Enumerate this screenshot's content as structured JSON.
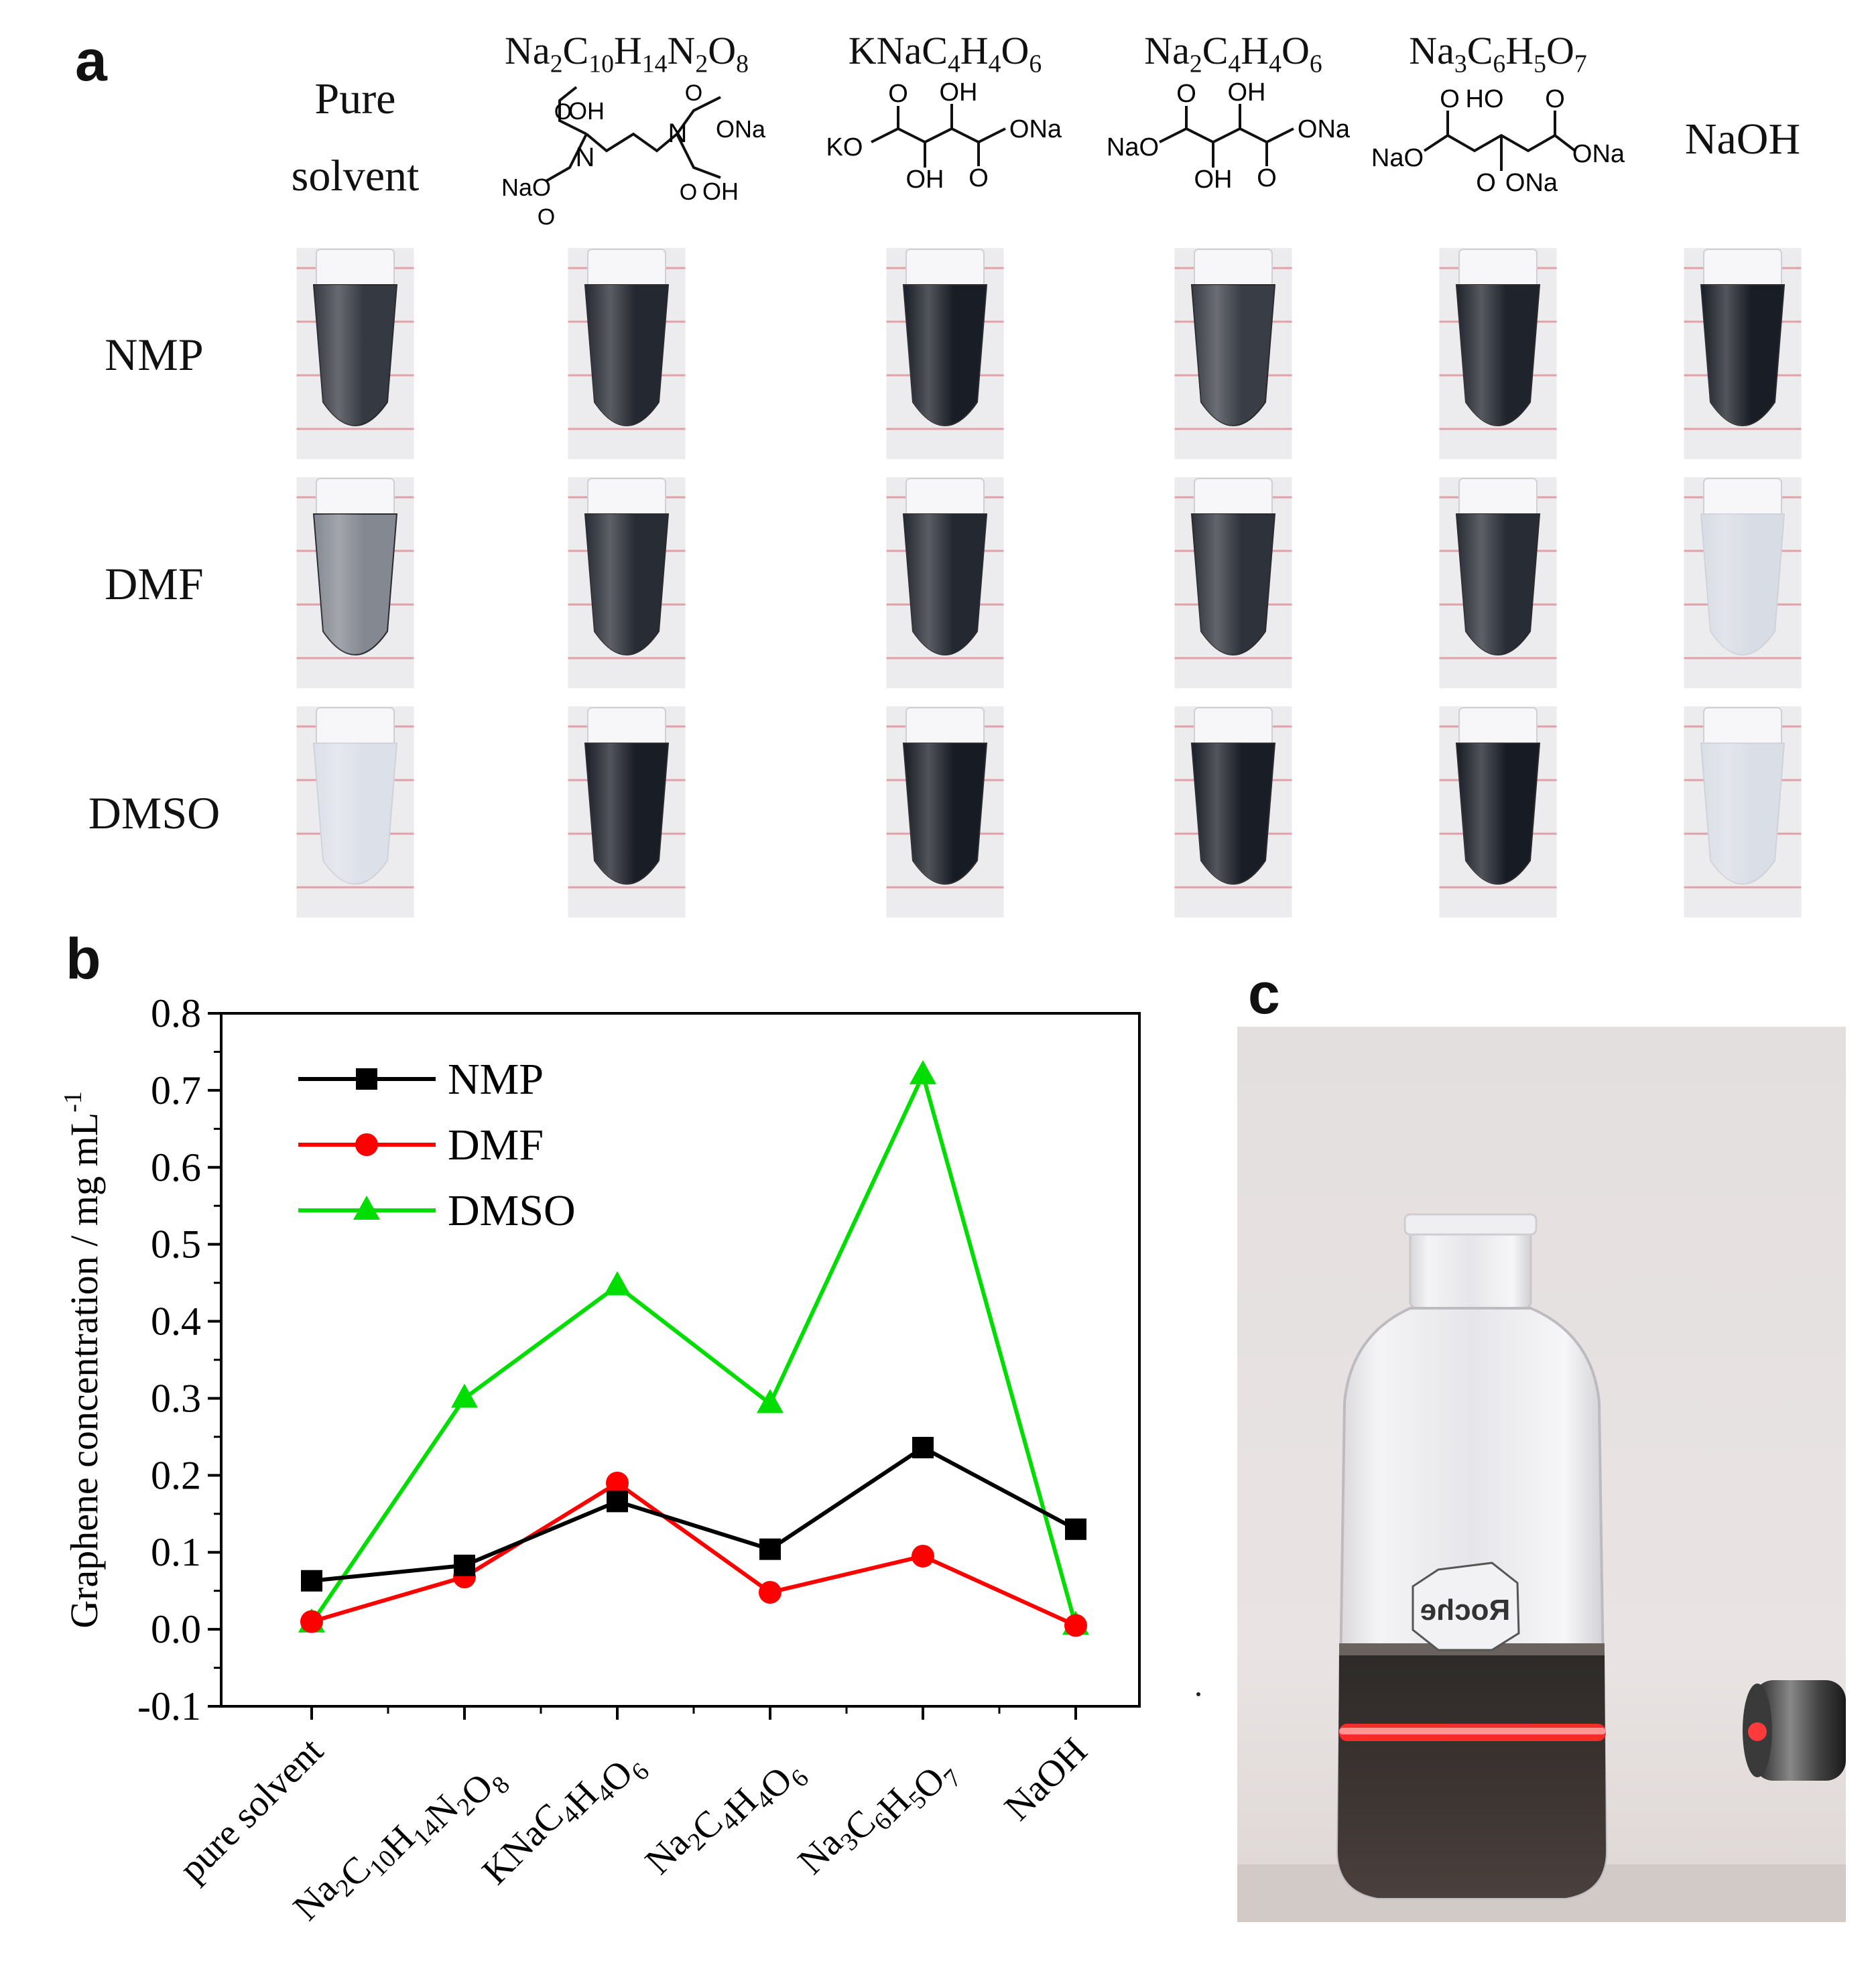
{
  "panels": {
    "a": "a",
    "b": "b",
    "c": "c"
  },
  "panel_a": {
    "columns": [
      {
        "lines": [
          "Pure",
          "solvent"
        ],
        "formula_html": ""
      },
      {
        "lines": [],
        "formula_html": "Na<sub>2</sub>C<sub>10</sub>H<sub>14</sub>N<sub>2</sub>O<sub>8</sub>"
      },
      {
        "lines": [],
        "formula_html": "KNaC<sub>4</sub>H<sub>4</sub>O<sub>6</sub>"
      },
      {
        "lines": [],
        "formula_html": "Na<sub>2</sub>C<sub>4</sub>H<sub>4</sub>O<sub>6</sub>"
      },
      {
        "lines": [],
        "formula_html": "Na<sub>3</sub>C<sub>6</sub>H<sub>5</sub>O<sub>7</sub>"
      },
      {
        "lines": [
          "NaOH"
        ],
        "formula_html": ""
      }
    ],
    "rows": [
      "NMP",
      "DMF",
      "DMSO"
    ],
    "structure_labels": {
      "edta": [
        "OH",
        "ONa",
        "NaO",
        "OH",
        "O",
        "O",
        "O",
        "O",
        "N",
        "N"
      ],
      "tartrate_kna": [
        "O",
        "OH",
        "KO",
        "ONa",
        "OH",
        "O"
      ],
      "tartrate_na": [
        "O",
        "OH",
        "NaO",
        "ONa",
        "OH",
        "O"
      ],
      "citrate": [
        "O",
        "HO",
        "O",
        "NaO",
        "ONa",
        "O",
        "ONa"
      ]
    },
    "tube_darkness": [
      [
        0.82,
        0.9,
        0.95,
        0.8,
        0.92,
        0.95
      ],
      [
        0.45,
        0.88,
        0.9,
        0.85,
        0.88,
        0.06
      ],
      [
        0.04,
        0.95,
        0.96,
        0.95,
        0.96,
        0.05
      ]
    ]
  },
  "chart_data": {
    "type": "line",
    "title": "",
    "xlabel": "",
    "ylabel": "Graphene concentration / mg mL",
    "ylabel_sup": "-1",
    "categories": [
      "pure solvent",
      "Na2C10H14N2O8",
      "KNaC4H4O6",
      "Na2C4H4O6",
      "Na3C6H5O7",
      "NaOH"
    ],
    "category_labels": [
      {
        "base": "pure solvent",
        "parts": [
          [
            "pure solvent",
            ""
          ]
        ]
      },
      {
        "base": "Na2C10H14N2O8",
        "parts": [
          [
            "Na",
            ""
          ],
          [
            "2",
            "sub"
          ],
          [
            "C",
            ""
          ],
          [
            "10",
            "sub"
          ],
          [
            "H",
            ""
          ],
          [
            "14",
            "sub"
          ],
          [
            "N",
            ""
          ],
          [
            "2",
            "sub"
          ],
          [
            "O",
            ""
          ],
          [
            "8",
            "sub"
          ]
        ]
      },
      {
        "base": "KNaC4H4O6",
        "parts": [
          [
            "KNaC",
            ""
          ],
          [
            "4",
            "sub"
          ],
          [
            "H",
            ""
          ],
          [
            "4",
            "sub"
          ],
          [
            "O",
            ""
          ],
          [
            "6",
            "sub"
          ]
        ]
      },
      {
        "base": "Na2C4H4O6",
        "parts": [
          [
            "Na",
            ""
          ],
          [
            "2",
            "sub"
          ],
          [
            "C",
            ""
          ],
          [
            "4",
            "sub"
          ],
          [
            "H",
            ""
          ],
          [
            "4",
            "sub"
          ],
          [
            "O",
            ""
          ],
          [
            "6",
            "sub"
          ]
        ]
      },
      {
        "base": "Na3C6H5O7",
        "parts": [
          [
            "Na",
            ""
          ],
          [
            "3",
            "sub"
          ],
          [
            "C",
            ""
          ],
          [
            "6",
            "sub"
          ],
          [
            "H",
            ""
          ],
          [
            "5",
            "sub"
          ],
          [
            "O",
            ""
          ],
          [
            "7",
            "sub"
          ]
        ]
      },
      {
        "base": "NaOH",
        "parts": [
          [
            "NaOH",
            ""
          ]
        ]
      }
    ],
    "series": [
      {
        "name": "NMP",
        "color": "#000000",
        "marker": "square",
        "values": [
          0.063,
          0.083,
          0.166,
          0.104,
          0.236,
          0.13
        ]
      },
      {
        "name": "DMF",
        "color": "#ff0000",
        "marker": "circle",
        "values": [
          0.01,
          0.068,
          0.19,
          0.048,
          0.095,
          0.005
        ]
      },
      {
        "name": "DMSO",
        "color": "#00dd00",
        "marker": "triangle",
        "values": [
          0.008,
          0.3,
          0.446,
          0.293,
          0.72,
          0.005
        ]
      }
    ],
    "ylim": [
      -0.1,
      0.8
    ],
    "yticks": [
      "-0.1",
      "0.0",
      "0.1",
      "0.2",
      "0.3",
      "0.4",
      "0.5",
      "0.6",
      "0.7",
      "0.8"
    ],
    "ytick_values": [
      -0.1,
      0.0,
      0.1,
      0.2,
      0.3,
      0.4,
      0.5,
      0.6,
      0.7,
      0.8
    ],
    "legend_placement": "top-left",
    "grid": false
  },
  "panel_c": {
    "bottle_label": "Roche"
  }
}
